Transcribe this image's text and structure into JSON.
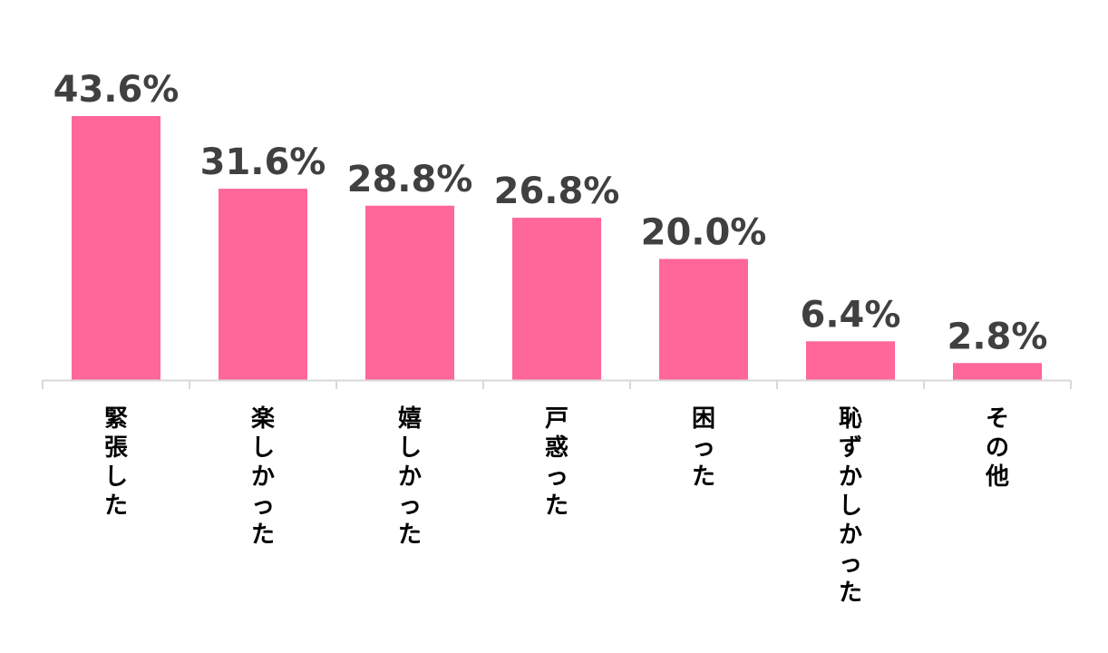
{
  "chart_data": {
    "type": "bar",
    "categories": [
      "緊張した",
      "楽しかった",
      "嬉しかった",
      "戸惑った",
      "困った",
      "恥ずかしかった",
      "その他"
    ],
    "values": [
      43.6,
      31.6,
      28.8,
      26.8,
      20.0,
      6.4,
      2.8
    ],
    "data_labels": [
      "43.6%",
      "31.6%",
      "28.8%",
      "26.8%",
      "20.0%",
      "6.4%",
      "2.8%"
    ],
    "title": "",
    "xlabel": "",
    "ylabel": "",
    "ylim": [
      0,
      43.6
    ],
    "grid": false,
    "legend": "none",
    "bar_color": "#ff6699",
    "label_color": "#404040",
    "axis_color": "#d9d9d9"
  }
}
